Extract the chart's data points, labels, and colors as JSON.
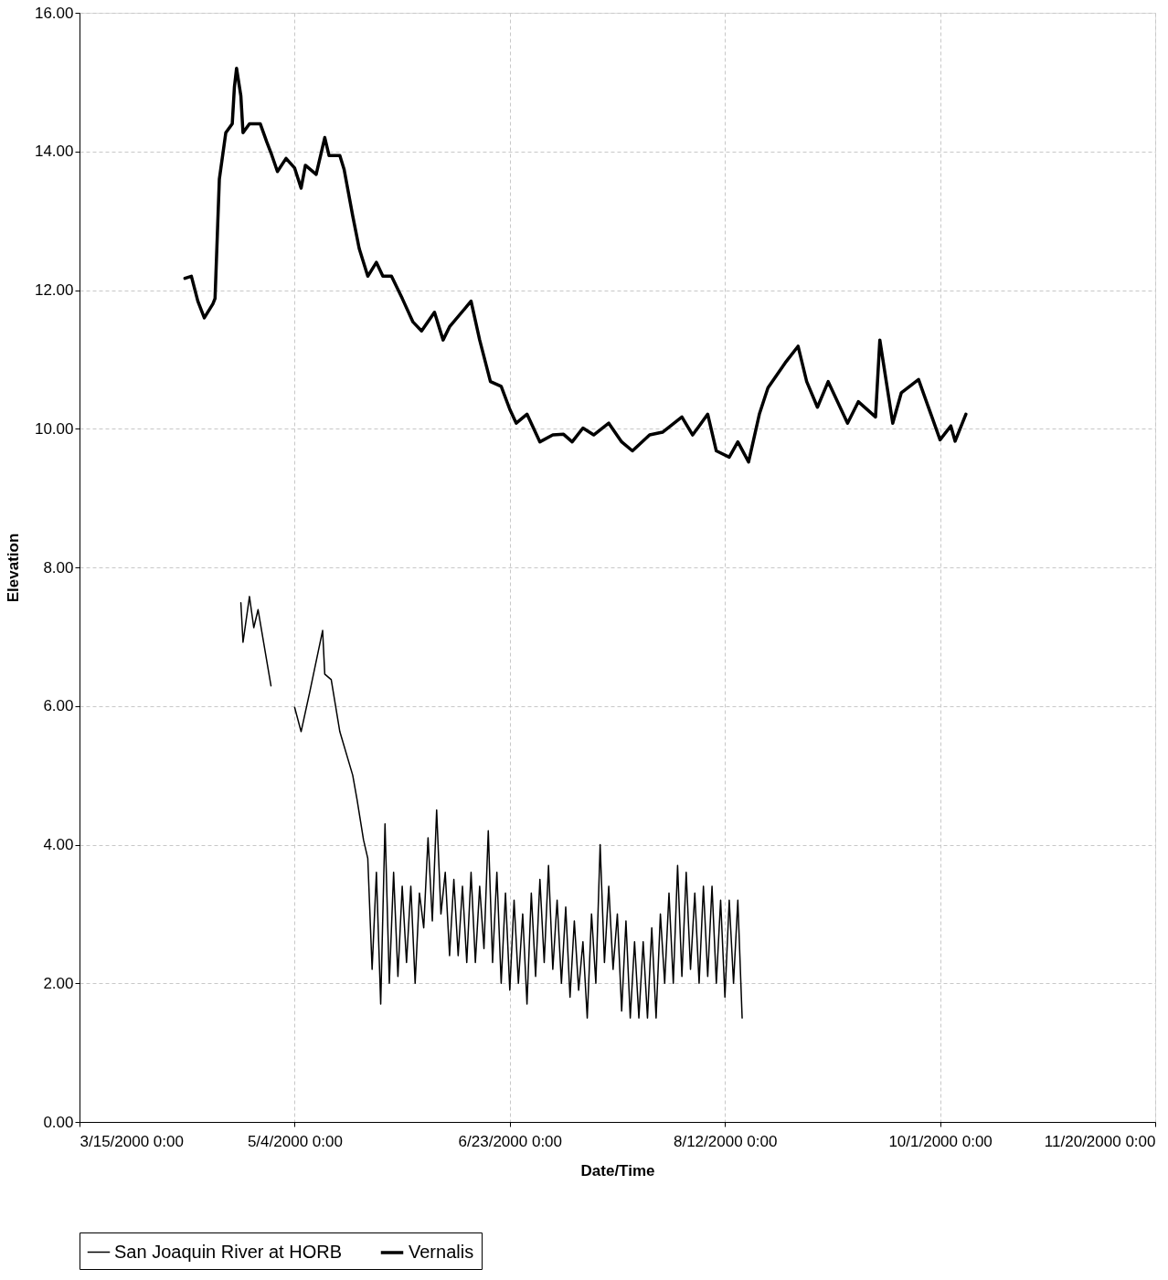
{
  "chart_data": {
    "type": "line",
    "xlabel": "Date/Time",
    "ylabel": "Elevation",
    "xlim": [
      "2000-03-15T00:00",
      "2000-11-20T00:00"
    ],
    "xticks": [
      {
        "value": "2000-03-15T00:00",
        "label": "3/15/2000 0:00"
      },
      {
        "value": "2000-05-04T00:00",
        "label": "5/4/2000 0:00"
      },
      {
        "value": "2000-06-23T00:00",
        "label": "6/23/2000 0:00"
      },
      {
        "value": "2000-08-12T00:00",
        "label": "8/12/2000 0:00"
      },
      {
        "value": "2000-10-01T00:00",
        "label": "10/1/2000 0:00"
      },
      {
        "value": "2000-11-20T00:00",
        "label": "11/20/2000 0:00"
      }
    ],
    "ylim": [
      0,
      16
    ],
    "yticks": [
      {
        "value": 0,
        "label": "0.00"
      },
      {
        "value": 2,
        "label": "2.00"
      },
      {
        "value": 4,
        "label": "4.00"
      },
      {
        "value": 6,
        "label": "6.00"
      },
      {
        "value": 8,
        "label": "8.00"
      },
      {
        "value": 10,
        "label": "10.00"
      },
      {
        "value": 12,
        "label": "12.00"
      },
      {
        "value": 14,
        "label": "14.00"
      },
      {
        "value": 16,
        "label": "16.00"
      }
    ],
    "grid": true,
    "legend": "bottom",
    "line_style": "solid",
    "series": [
      {
        "name": "San Joaquin River at HORB",
        "color": "#000000",
        "x": [
          "2000-04-21T12:00",
          "2000-04-22T00:00",
          "2000-04-23T12:00",
          "2000-04-24T12:00",
          "2000-04-25T12:00",
          "2000-04-28T12:00",
          "2000-05-01T00:00",
          "2000-05-04T00:00",
          "2000-05-05T12:00",
          "2000-05-07T12:00",
          "2000-05-10T12:00",
          "2000-05-11T00:00",
          "2000-05-12T12:00",
          "2000-05-14T12:00",
          "2000-05-17T12:00",
          "2000-05-18T12:00",
          "2000-05-20T00:00",
          "2000-05-21T00:00",
          "2000-05-22T00:00",
          "2000-05-23T00:00",
          "2000-05-24T00:00",
          "2000-05-25T00:00",
          "2000-05-26T00:00",
          "2000-05-27T00:00",
          "2000-05-28T00:00",
          "2000-05-29T00:00",
          "2000-05-30T00:00",
          "2000-05-31T00:00",
          "2000-06-01T00:00",
          "2000-06-02T00:00",
          "2000-06-03T00:00",
          "2000-06-04T00:00",
          "2000-06-05T00:00",
          "2000-06-06T00:00",
          "2000-06-07T00:00",
          "2000-06-08T00:00",
          "2000-06-09T00:00",
          "2000-06-10T00:00",
          "2000-06-11T00:00",
          "2000-06-12T00:00",
          "2000-06-13T00:00",
          "2000-06-14T00:00",
          "2000-06-15T00:00",
          "2000-06-16T00:00",
          "2000-06-17T00:00",
          "2000-06-18T00:00",
          "2000-06-19T00:00",
          "2000-06-20T00:00",
          "2000-06-21T00:00",
          "2000-06-22T00:00",
          "2000-06-23T00:00",
          "2000-06-24T00:00",
          "2000-06-25T00:00",
          "2000-06-26T00:00",
          "2000-06-27T00:00",
          "2000-06-28T00:00",
          "2000-06-29T00:00",
          "2000-06-30T00:00",
          "2000-07-01T00:00",
          "2000-07-02T00:00",
          "2000-07-03T00:00",
          "2000-07-04T00:00",
          "2000-07-05T00:00",
          "2000-07-06T00:00",
          "2000-07-07T00:00",
          "2000-07-08T00:00",
          "2000-07-09T00:00",
          "2000-07-10T00:00",
          "2000-07-11T00:00",
          "2000-07-12T00:00",
          "2000-07-13T00:00",
          "2000-07-14T00:00",
          "2000-07-15T00:00",
          "2000-07-16T00:00",
          "2000-07-17T00:00",
          "2000-07-18T00:00",
          "2000-07-19T00:00",
          "2000-07-20T00:00",
          "2000-07-21T00:00",
          "2000-07-22T00:00",
          "2000-07-23T00:00",
          "2000-07-24T00:00",
          "2000-07-25T00:00",
          "2000-07-26T00:00",
          "2000-07-27T00:00",
          "2000-07-28T00:00",
          "2000-07-29T00:00",
          "2000-07-30T00:00",
          "2000-07-31T00:00",
          "2000-08-01T00:00",
          "2000-08-02T00:00",
          "2000-08-03T00:00",
          "2000-08-04T00:00",
          "2000-08-05T00:00",
          "2000-08-06T00:00",
          "2000-08-07T00:00",
          "2000-08-08T00:00",
          "2000-08-09T00:00",
          "2000-08-10T00:00",
          "2000-08-11T00:00",
          "2000-08-12T00:00",
          "2000-08-13T00:00",
          "2000-08-14T00:00",
          "2000-08-15T00:00",
          "2000-08-16T00:00"
        ],
        "values": [
          7.49,
          6.92,
          7.58,
          7.13,
          7.39,
          6.29,
          null,
          5.98,
          5.63,
          6.2,
          7.09,
          6.46,
          6.38,
          5.63,
          5.0,
          4.65,
          4.07,
          3.8,
          2.2,
          3.6,
          1.7,
          4.3,
          2.0,
          3.6,
          2.1,
          3.4,
          2.3,
          3.4,
          2.0,
          3.3,
          2.8,
          4.1,
          2.9,
          4.5,
          3.0,
          3.6,
          2.4,
          3.5,
          2.4,
          3.4,
          2.3,
          3.6,
          2.3,
          3.4,
          2.5,
          4.2,
          2.3,
          3.6,
          2.0,
          3.3,
          1.9,
          3.2,
          2.0,
          3.0,
          1.7,
          3.3,
          2.1,
          3.5,
          2.3,
          3.7,
          2.2,
          3.2,
          2.0,
          3.1,
          1.8,
          2.9,
          1.9,
          2.6,
          1.5,
          3.0,
          2.0,
          4.0,
          2.3,
          3.4,
          2.2,
          3.0,
          1.6,
          2.9,
          1.5,
          2.6,
          1.5,
          2.6,
          1.5,
          2.8,
          1.5,
          3.0,
          2.0,
          3.3,
          2.0,
          3.7,
          2.1,
          3.6,
          2.2,
          3.3,
          2.0,
          3.4,
          2.1,
          3.4,
          2.0,
          3.2,
          1.8,
          3.2,
          2.0,
          3.2,
          1.5
        ]
      },
      {
        "name": "Vernalis",
        "color": "#000000",
        "x": [
          "2000-04-08T12:00",
          "2000-04-10T00:00",
          "2000-04-11T12:00",
          "2000-04-13T00:00",
          "2000-04-15T00:00",
          "2000-04-15T12:00",
          "2000-04-16T12:00",
          "2000-04-18T00:00",
          "2000-04-19T12:00",
          "2000-04-20T00:00",
          "2000-04-20T12:00",
          "2000-04-21T12:00",
          "2000-04-22T00:00",
          "2000-04-23T12:00",
          "2000-04-26T00:00",
          "2000-04-27T12:00",
          "2000-04-28T12:00",
          "2000-04-30T00:00",
          "2000-05-02T00:00",
          "2000-05-04T00:00",
          "2000-05-05T12:00",
          "2000-05-06T12:00",
          "2000-05-09T00:00",
          "2000-05-11T00:00",
          "2000-05-12T00:00",
          "2000-05-14T12:00",
          "2000-05-15T12:00",
          "2000-05-17T12:00",
          "2000-05-19T00:00",
          "2000-05-21T00:00",
          "2000-05-23T00:00",
          "2000-05-24T12:00",
          "2000-05-26T12:00",
          "2000-05-29T00:00",
          "2000-05-31T12:00",
          "2000-06-02T12:00",
          "2000-06-05T12:00",
          "2000-06-07T12:00",
          "2000-06-09T00:00",
          "2000-06-14T00:00",
          "2000-06-16T00:00",
          "2000-06-18T12:00",
          "2000-06-21T00:00",
          "2000-06-23T00:00",
          "2000-06-24T12:00",
          "2000-06-27T00:00",
          "2000-06-30T00:00",
          "2000-07-03T00:00",
          "2000-07-05T12:00",
          "2000-07-07T12:00",
          "2000-07-10T00:00",
          "2000-07-12T12:00",
          "2000-07-16T00:00",
          "2000-07-19T00:00",
          "2000-07-21T12:00",
          "2000-07-25T12:00",
          "2000-07-28T12:00",
          "2000-08-02T00:00",
          "2000-08-04T12:00",
          "2000-08-08T00:00",
          "2000-08-10T00:00",
          "2000-08-13T00:00",
          "2000-08-15T00:00",
          "2000-08-17T12:00",
          "2000-08-20T00:00",
          "2000-08-22T00:00",
          "2000-08-26T00:00",
          "2000-08-29T00:00",
          "2000-08-31T00:00",
          "2000-09-02T12:00",
          "2000-09-05T00:00",
          "2000-09-09T12:00",
          "2000-09-12T00:00",
          "2000-09-16T00:00",
          "2000-09-17T00:00",
          "2000-09-20T00:00",
          "2000-09-22T00:00",
          "2000-09-26T00:00",
          "2000-10-01T00:00",
          "2000-10-03T12:00",
          "2000-10-04T12:00",
          "2000-10-07T00:00"
        ],
        "values": [
          12.17,
          12.2,
          11.84,
          11.6,
          11.8,
          11.88,
          13.6,
          14.27,
          14.4,
          14.93,
          15.2,
          14.8,
          14.27,
          14.4,
          14.4,
          14.14,
          13.98,
          13.71,
          13.9,
          13.76,
          13.47,
          13.8,
          13.67,
          14.2,
          13.94,
          13.94,
          13.74,
          13.07,
          12.6,
          12.2,
          12.4,
          12.2,
          12.2,
          11.88,
          11.54,
          11.41,
          11.68,
          11.28,
          11.47,
          11.84,
          11.28,
          10.68,
          10.61,
          10.28,
          10.08,
          10.21,
          9.81,
          9.91,
          9.92,
          9.81,
          10.01,
          9.91,
          10.08,
          9.81,
          9.68,
          9.91,
          9.95,
          10.17,
          9.91,
          10.21,
          9.68,
          9.59,
          9.81,
          9.52,
          10.21,
          10.59,
          10.95,
          11.19,
          10.68,
          10.31,
          10.68,
          10.08,
          10.39,
          10.17,
          11.28,
          10.08,
          10.52,
          10.71,
          9.84,
          10.04,
          9.82,
          10.21
        ]
      }
    ]
  }
}
